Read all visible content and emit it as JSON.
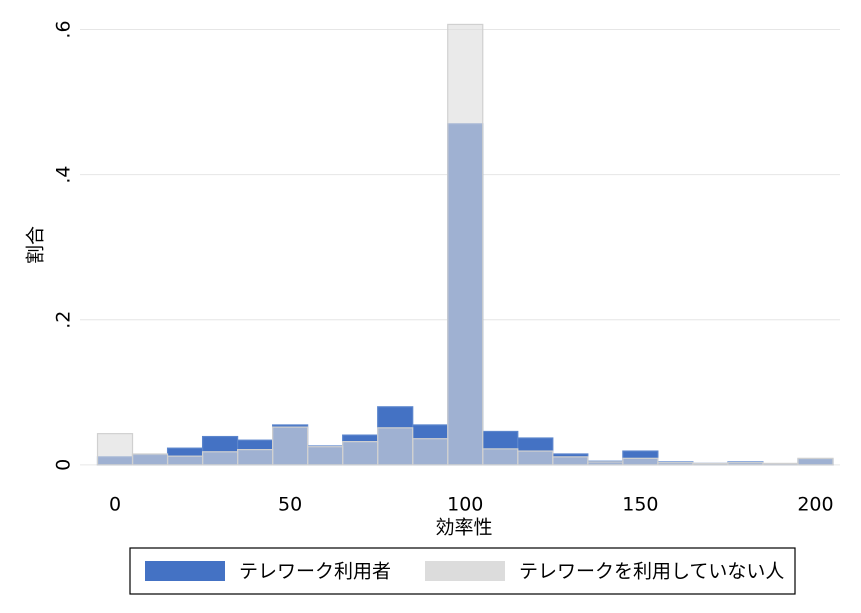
{
  "chart_data": {
    "type": "histogram",
    "x_label": "効率性",
    "y_label": "割合",
    "bins": [
      -5,
      5,
      15,
      25,
      35,
      45,
      55,
      65,
      75,
      85,
      95,
      105,
      115,
      125,
      135,
      145,
      155,
      165,
      175,
      185,
      195,
      205
    ],
    "series": [
      {
        "name": "テレワーク利用者",
        "color": "#4472c4",
        "opacity": 1,
        "values": [
          0.011,
          0.014,
          0.023,
          0.039,
          0.034,
          0.055,
          0.026,
          0.041,
          0.08,
          0.055,
          0.47,
          0.046,
          0.037,
          0.015,
          0.005,
          0.019,
          0.004,
          0.002,
          0.004,
          0.001,
          0.008
        ]
      },
      {
        "name": "テレワークを利用していない人",
        "color": "#dcdcdc",
        "opacity": 0.6,
        "values": [
          0.043,
          0.015,
          0.012,
          0.018,
          0.021,
          0.052,
          0.025,
          0.032,
          0.051,
          0.036,
          0.607,
          0.022,
          0.019,
          0.011,
          0.004,
          0.009,
          0.003,
          0.002,
          0.003,
          0.002,
          0.009
        ]
      }
    ],
    "xlim": [
      -10,
      207
    ],
    "xticks": [
      0,
      50,
      100,
      150,
      200
    ],
    "ylim": [
      -0.014,
      0.62
    ],
    "yticks": [
      {
        "value": 0,
        "label": "0"
      },
      {
        "value": 0.2,
        "label": ".2"
      },
      {
        "value": 0.4,
        "label": ".4"
      },
      {
        "value": 0.6,
        "label": ".6"
      }
    ],
    "grid": true,
    "legend": "bottom"
  }
}
